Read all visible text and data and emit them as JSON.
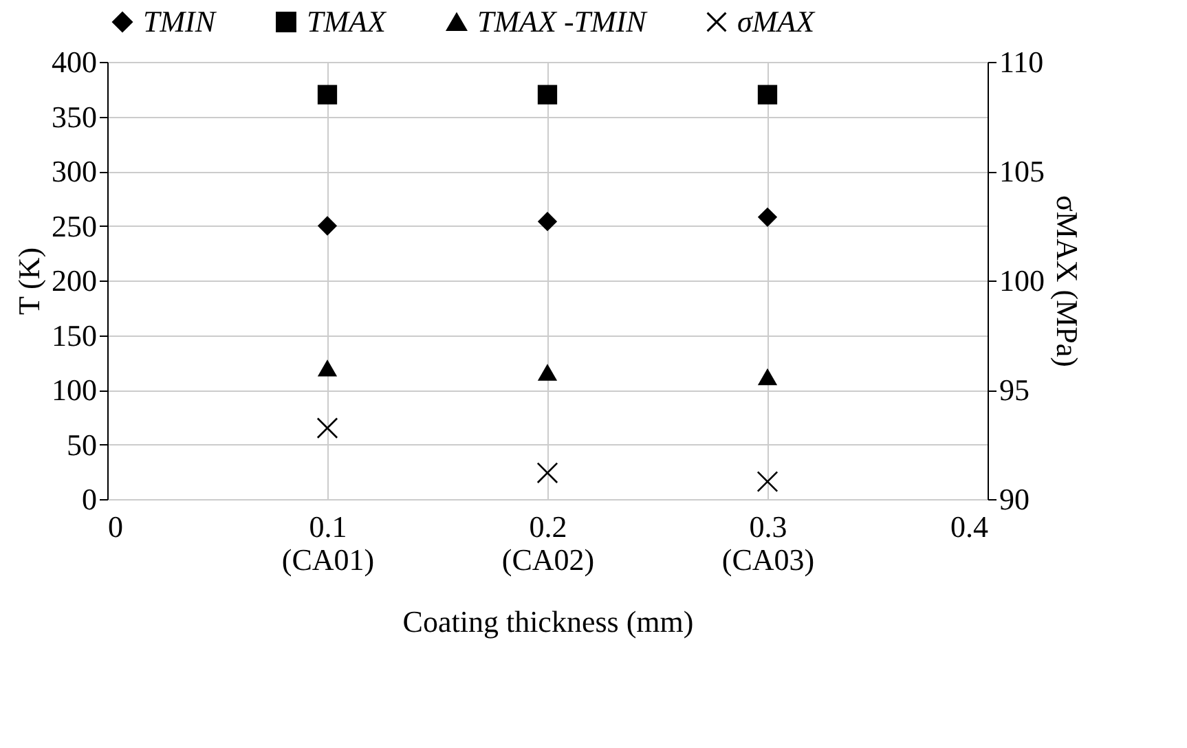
{
  "chart_data": {
    "type": "scatter",
    "xlabel": "Coating thickness (mm)",
    "ylabel": "T (K)",
    "y2label": "σMAX (MPa)",
    "x": [
      0.1,
      0.2,
      0.3
    ],
    "series": [
      {
        "name": "TMIN",
        "color": "#000000",
        "marker": "diamond",
        "values": [
          250,
          254,
          258
        ]
      },
      {
        "name": "TMAX",
        "color": "#000000",
        "marker": "square",
        "values": [
          370,
          370,
          370
        ]
      },
      {
        "name": "TMAX -TMIN",
        "color": "#000000",
        "marker": "triangle",
        "values": [
          120,
          116,
          112
        ]
      },
      {
        "name": "σMAX",
        "color": "#000000",
        "marker": "cross",
        "axis": "y2",
        "values": [
          93.25,
          91.2,
          90.8
        ]
      }
    ],
    "xlim": [
      0,
      0.4
    ],
    "xticks": [
      0,
      {
        "value": 0.1,
        "label": "0.1\n(CA01)"
      },
      {
        "value": 0.2,
        "label": "0.2\n(CA02)"
      },
      {
        "value": 0.3,
        "label": "0.3\n(CA03)"
      },
      0.4
    ],
    "ylim": [
      0,
      400
    ],
    "yticks": [
      0,
      50,
      100,
      150,
      200,
      250,
      300,
      350,
      400
    ],
    "y2lim": [
      90,
      110
    ],
    "y2ticks": [
      90,
      95,
      100,
      105,
      110
    ],
    "grid": true,
    "legend": "top"
  }
}
